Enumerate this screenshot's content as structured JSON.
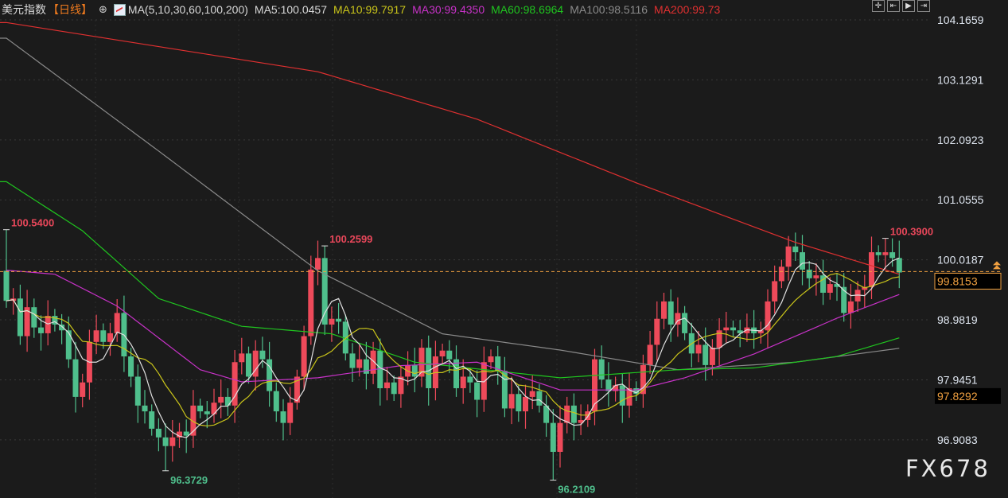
{
  "header": {
    "title": "美元指数",
    "period": "【日线】",
    "settings_icon": "crosshair-circle-icon",
    "ma_label": "MA(5,10,30,60,100,200)",
    "ma_values": [
      {
        "text": "MA5:100.0457",
        "color": "#d8d8d8"
      },
      {
        "text": "MA10:99.7917",
        "color": "#c9c41a"
      },
      {
        "text": "MA30:99.4350",
        "color": "#c832c8"
      },
      {
        "text": "MA60:98.6964",
        "color": "#1fc51f"
      },
      {
        "text": "MA100:98.5116",
        "color": "#8a8a8a"
      },
      {
        "text": "MA200:99.73",
        "color": "#e03030"
      }
    ]
  },
  "toolbar": {
    "icons": [
      "crosshair-icon",
      "zoom-range-icon",
      "play-icon",
      "scroll-right-icon"
    ]
  },
  "watermark": "FX678",
  "chart_data": {
    "type": "candlestick",
    "title": "美元指数【日线】",
    "y_ticks": [
      "104.1659",
      "103.1291",
      "102.0923",
      "101.0555",
      "100.0187",
      "98.9819",
      "97.9451",
      "96.9083"
    ],
    "ylim": [
      96.0,
      104.2
    ],
    "grid": true,
    "colors": {
      "up": "#ee4a5a",
      "down": "#4fbf8c",
      "background": "#1b1b1b"
    },
    "closes": [
      99.31,
      99.35,
      98.7,
      99.2,
      98.85,
      98.75,
      99.05,
      98.9,
      98.8,
      98.3,
      97.65,
      97.9,
      98.6,
      98.8,
      98.6,
      98.75,
      99.1,
      98.35,
      98.0,
      97.5,
      97.4,
      97.1,
      96.95,
      96.8,
      96.95,
      97.05,
      96.98,
      97.5,
      97.4,
      97.35,
      97.55,
      97.65,
      97.5,
      98.25,
      98.4,
      98.0,
      98.45,
      98.3,
      97.75,
      97.4,
      97.2,
      97.55,
      98.0,
      98.7,
      99.85,
      100.05,
      98.9,
      99.0,
      98.95,
      98.4,
      98.15,
      98.3,
      98.05,
      98.45,
      97.8,
      97.9,
      97.7,
      98.0,
      98.2,
      98.0,
      98.5,
      97.8,
      98.35,
      98.45,
      98.3,
      97.8,
      98.0,
      97.9,
      97.6,
      98.25,
      98.35,
      98.1,
      97.45,
      97.7,
      97.4,
      97.65,
      97.75,
      97.5,
      97.2,
      96.7,
      97.2,
      97.5,
      97.2,
      97.25,
      97.4,
      98.3,
      97.95,
      97.75,
      97.85,
      97.5,
      97.8,
      97.7,
      98.2,
      98.55,
      99.0,
      99.3,
      98.9,
      99.1,
      98.75,
      98.4,
      98.55,
      98.2,
      98.5,
      98.8,
      98.85,
      98.8,
      98.75,
      98.85,
      98.75,
      98.8,
      99.3,
      99.65,
      99.9,
      100.25,
      100.15,
      99.85,
      99.7,
      99.75,
      99.45,
      99.6,
      99.55,
      99.1,
      99.3,
      99.5,
      99.55,
      100.15,
      100.1,
      100.15,
      100.05,
      99.8
    ],
    "first_open": 99.83,
    "extremes": [
      {
        "index": 0,
        "value": 100.54,
        "label": "100.5400",
        "type": "high",
        "color": "#e8475a"
      },
      {
        "index": 23,
        "value": 96.3729,
        "label": "96.3729",
        "type": "low",
        "color": "#4fbf8c"
      },
      {
        "index": 46,
        "value": 100.2599,
        "label": "100.2599",
        "type": "high",
        "color": "#e8475a"
      },
      {
        "index": 79,
        "value": 96.2109,
        "label": "96.2109",
        "type": "low",
        "color": "#4fbf8c"
      },
      {
        "index": 127,
        "value": 100.39,
        "label": "100.3900",
        "type": "high",
        "color": "#e8475a"
      }
    ],
    "moving_averages": [
      {
        "name": "MA200",
        "color": "#e03030",
        "points": [
          [
            0,
            104.12
          ],
          [
            45,
            103.27
          ],
          [
            68,
            102.45
          ],
          [
            91,
            101.35
          ],
          [
            114,
            100.32
          ],
          [
            129,
            99.77
          ]
        ]
      },
      {
        "name": "MA100",
        "color": "#8a8a8a",
        "points": [
          [
            0,
            103.85
          ],
          [
            22,
            101.9
          ],
          [
            45,
            99.83
          ],
          [
            63,
            98.74
          ],
          [
            80,
            98.46
          ],
          [
            97,
            98.12
          ],
          [
            114,
            98.25
          ],
          [
            129,
            98.49
          ]
        ]
      },
      {
        "name": "MA60",
        "color": "#1fc51f",
        "points": [
          [
            0,
            101.37
          ],
          [
            11,
            100.52
          ],
          [
            22,
            99.35
          ],
          [
            34,
            98.87
          ],
          [
            47,
            98.74
          ],
          [
            59,
            98.25
          ],
          [
            80,
            97.98
          ],
          [
            97,
            98.12
          ],
          [
            108,
            98.15
          ],
          [
            120,
            98.35
          ],
          [
            129,
            98.67
          ]
        ]
      },
      {
        "name": "MA30",
        "color": "#c832c8",
        "points": [
          [
            0,
            99.84
          ],
          [
            7,
            99.77
          ],
          [
            16,
            99.22
          ],
          [
            28,
            98.12
          ],
          [
            34,
            97.91
          ],
          [
            45,
            97.98
          ],
          [
            57,
            98.19
          ],
          [
            68,
            98.25
          ],
          [
            80,
            97.77
          ],
          [
            91,
            97.77
          ],
          [
            98,
            97.98
          ],
          [
            108,
            98.39
          ],
          [
            120,
            99.01
          ],
          [
            129,
            99.42
          ]
        ]
      },
      {
        "name": "MA10",
        "color": "#c9c41a",
        "period": 10
      },
      {
        "name": "MA5",
        "color": "#e0e0e0",
        "period": 5
      }
    ],
    "current_price": {
      "value": 99.8153,
      "label": "99.8153",
      "color": "#f0a040"
    },
    "marker_price": {
      "value": 97.8292,
      "label": "97.8292",
      "color": "#f0a040"
    }
  }
}
